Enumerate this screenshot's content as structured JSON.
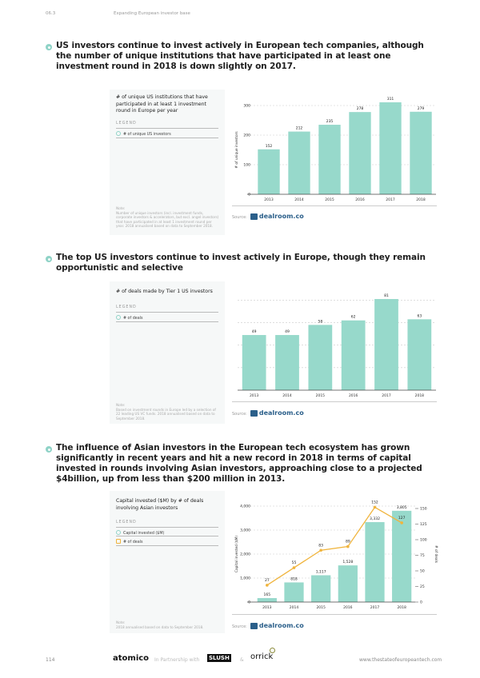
{
  "header": {
    "section": "06.3",
    "title": "Expanding European investor base"
  },
  "sections": [
    {
      "headline": "US investors continue to invest actively in European tech companies, although the number of unique institutions that have participated in at least one investment round in 2018 is down slightly on 2017.",
      "panel": {
        "title": "# of unique US institutions that have participated in at least 1 investment round in Europe per year",
        "legend_label": "LEGEND",
        "legend": [
          "# of unique US investors"
        ],
        "note_label": "Note:",
        "note": "Number of unique investors (incl. investment funds, corporate investors & accelerators, but excl. angel investors) that have participated in at least 1 investment round per year. 2018 annualised based on data to September 2018."
      },
      "source_label": "Source:",
      "source_name": "dealroom.co"
    },
    {
      "headline": "The top US investors continue to invest actively in Europe, though they remain opportunistic and selective",
      "panel": {
        "title": "# of deals made by Tier 1 US investors",
        "legend_label": "LEGEND",
        "legend": [
          "# of deals"
        ],
        "note_label": "Note:",
        "note": "Based on investment rounds in Europe led by a selection of 22 leading US VC funds. 2018 annualised based on data to September 2018."
      },
      "source_label": "Source:",
      "source_name": "dealroom.co"
    },
    {
      "headline": "The influence of Asian investors in the European tech ecosystem has grown significantly in recent years and hit a new record in 2018 in terms of capital invested in rounds involving Asian investors, approaching close to a projected $4billion, up from less than $200 million in 2013.",
      "panel": {
        "title": "Capital invested ($M) by # of deals involving Asian investors",
        "legend_label": "LEGEND",
        "legend": [
          "Capital invested ($M)",
          "# of deals"
        ],
        "note_label": "Note:",
        "note": "2018 annualised based on data to September 2018."
      },
      "source_label": "Source:",
      "source_name": "dealroom.co"
    }
  ],
  "chart_data": [
    {
      "type": "bar",
      "categories": [
        "2013",
        "2014",
        "2015",
        "2016",
        "2017",
        "2018"
      ],
      "values": [
        152,
        212,
        235,
        278,
        311,
        279
      ],
      "value_labels": [
        "152",
        "212",
        "235",
        "278",
        "311",
        "279"
      ],
      "ylabel": "# of unique investors",
      "yticks": [
        "0",
        "100",
        "200",
        "300"
      ],
      "ylim": [
        0,
        300
      ],
      "grid": true,
      "color": "#97d9cb"
    },
    {
      "type": "bar",
      "categories": [
        "2013",
        "2014",
        "2015",
        "2016",
        "2017",
        "2018"
      ],
      "values": [
        49,
        49,
        58,
        62,
        81,
        63
      ],
      "value_labels": [
        "49",
        "49",
        "58",
        "62",
        "81",
        "63"
      ],
      "ylim": [
        0,
        80
      ],
      "grid": true,
      "color": "#97d9cb"
    },
    {
      "type": "bar+line",
      "categories": [
        "2013",
        "2014",
        "2015",
        "2016",
        "2017",
        "2018"
      ],
      "series": [
        {
          "name": "Capital invested ($M)",
          "type": "bar",
          "values": [
            165,
            818,
            1117,
            1528,
            3332,
            3805
          ],
          "labels": [
            "165",
            "818",
            "1,117",
            "1,528",
            "3,332",
            "3,805"
          ],
          "color": "#97d9cb",
          "axis": "left"
        },
        {
          "name": "# of deals",
          "type": "line",
          "values": [
            27,
            55,
            83,
            89,
            152,
            127
          ],
          "labels": [
            "27",
            "55",
            "83",
            "89",
            "152",
            "127"
          ],
          "color": "#f0b43c",
          "axis": "right"
        }
      ],
      "ylabel": "Capital invested ($M)",
      "y2label": "# of deals",
      "yticks": [
        "0",
        "1,000",
        "2,000",
        "3,000",
        "4,000"
      ],
      "ylim": [
        0,
        4000
      ],
      "y2ticks": [
        "0",
        "25",
        "50",
        "75",
        "100",
        "125",
        "150"
      ],
      "y2lim": [
        0,
        150
      ],
      "grid": true
    }
  ],
  "footer": {
    "page": "114",
    "brand": "atomico",
    "partnership": "In Partnership with",
    "partner1": "SLUSH",
    "amp": "&",
    "partner2": "orrick",
    "url": "www.thestateofeuropeantech.com"
  }
}
